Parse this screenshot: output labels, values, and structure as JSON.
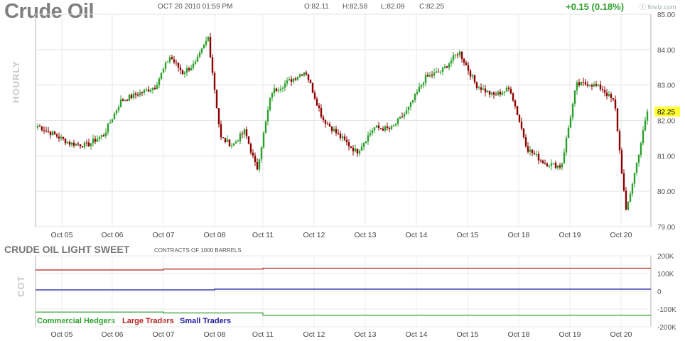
{
  "header": {
    "title": "Crude Oil",
    "datetime": "OCT 20 2010 01:59 PM",
    "open": "O:82.11",
    "high": "H:82.58",
    "low": "L:82.09",
    "close": "C:82.25",
    "change": "+0.15 (0.18%)",
    "logo": "finviz.com"
  },
  "colors": {
    "up": "#2ca02c",
    "down": "#8b0000",
    "commercial": "#2ca02c",
    "large": "#b22222",
    "small": "#1f1f9f",
    "current_price_bg": "#ffff33"
  },
  "chart_data": [
    {
      "type": "line",
      "description_axis": "HOURLY",
      "current_price": "82.25",
      "ylim": [
        79,
        85
      ],
      "y_ticks": [
        "85.00",
        "84.00",
        "83.00",
        "82.00",
        "81.00",
        "80.00",
        "79.00"
      ],
      "x_tick_labels": [
        "Oct 05",
        "Oct 06",
        "Oct 07",
        "Oct 08",
        "Oct 11",
        "Oct 12",
        "Oct 13",
        "Oct 14",
        "Oct 15",
        "Oct 18",
        "Oct 19",
        "Oct 20"
      ],
      "series": [
        {
          "x": [
            "Oct 04",
            "Oct 05",
            "Oct 05",
            "Oct 05",
            "Oct 06",
            "Oct 06",
            "Oct 06",
            "Oct 07",
            "Oct 07",
            "Oct 07",
            "Oct 07",
            "Oct 08",
            "Oct 08",
            "Oct 08",
            "Oct 08",
            "Oct 11",
            "Oct 11",
            "Oct 11",
            "Oct 12",
            "Oct 12",
            "Oct 12",
            "Oct 13",
            "Oct 13",
            "Oct 13",
            "Oct 14",
            "Oct 14",
            "Oct 14",
            "Oct 15",
            "Oct 15",
            "Oct 15",
            "Oct 18",
            "Oct 18",
            "Oct 18",
            "Oct 19",
            "Oct 19",
            "Oct 19",
            "Oct 19",
            "Oct 20",
            "Oct 20",
            "Oct 20"
          ],
          "values": [
            81.85,
            81.35,
            81.3,
            81.6,
            82.55,
            82.75,
            82.95,
            83.8,
            83.35,
            83.6,
            84.35,
            81.5,
            81.3,
            81.7,
            80.6,
            82.8,
            83.1,
            83.4,
            82.05,
            81.55,
            81.1,
            81.8,
            81.75,
            82.3,
            83.2,
            83.4,
            83.95,
            83.0,
            82.7,
            82.9,
            81.2,
            80.8,
            80.7,
            83.0,
            83.05,
            82.9,
            82.5,
            79.4,
            80.7,
            82.25
          ]
        }
      ]
    },
    {
      "type": "line",
      "title": "CRUDE OIL LIGHT SWEET",
      "subtitle": "CONTRACTS OF 1000 BARRELS",
      "description_axis": "COT",
      "ylim": [
        -200000,
        200000
      ],
      "y_ticks": [
        "200K",
        "100K",
        "0",
        "-100K",
        "-200K"
      ],
      "y_tick_values": [
        200000,
        100000,
        0,
        -100000,
        -200000
      ],
      "x_tick_labels": [
        "Oct 05",
        "Oct 06",
        "Oct 07",
        "Oct 08",
        "Oct 11",
        "Oct 12",
        "Oct 13",
        "Oct 14",
        "Oct 15",
        "Oct 18",
        "Oct 19",
        "Oct 20"
      ],
      "series": [
        {
          "name": "Commercial Hedgers",
          "x_steps": [
            "Oct 04",
            "Oct 07",
            "Oct 11"
          ],
          "values": [
            -117000,
            -122000,
            -135000
          ]
        },
        {
          "name": "Large Traders",
          "x_steps": [
            "Oct 04",
            "Oct 07",
            "Oct 11"
          ],
          "values": [
            120000,
            125000,
            130000
          ]
        },
        {
          "name": "Small Traders",
          "x_steps": [
            "Oct 04",
            "Oct 08"
          ],
          "values": [
            8000,
            12000
          ]
        }
      ]
    }
  ]
}
